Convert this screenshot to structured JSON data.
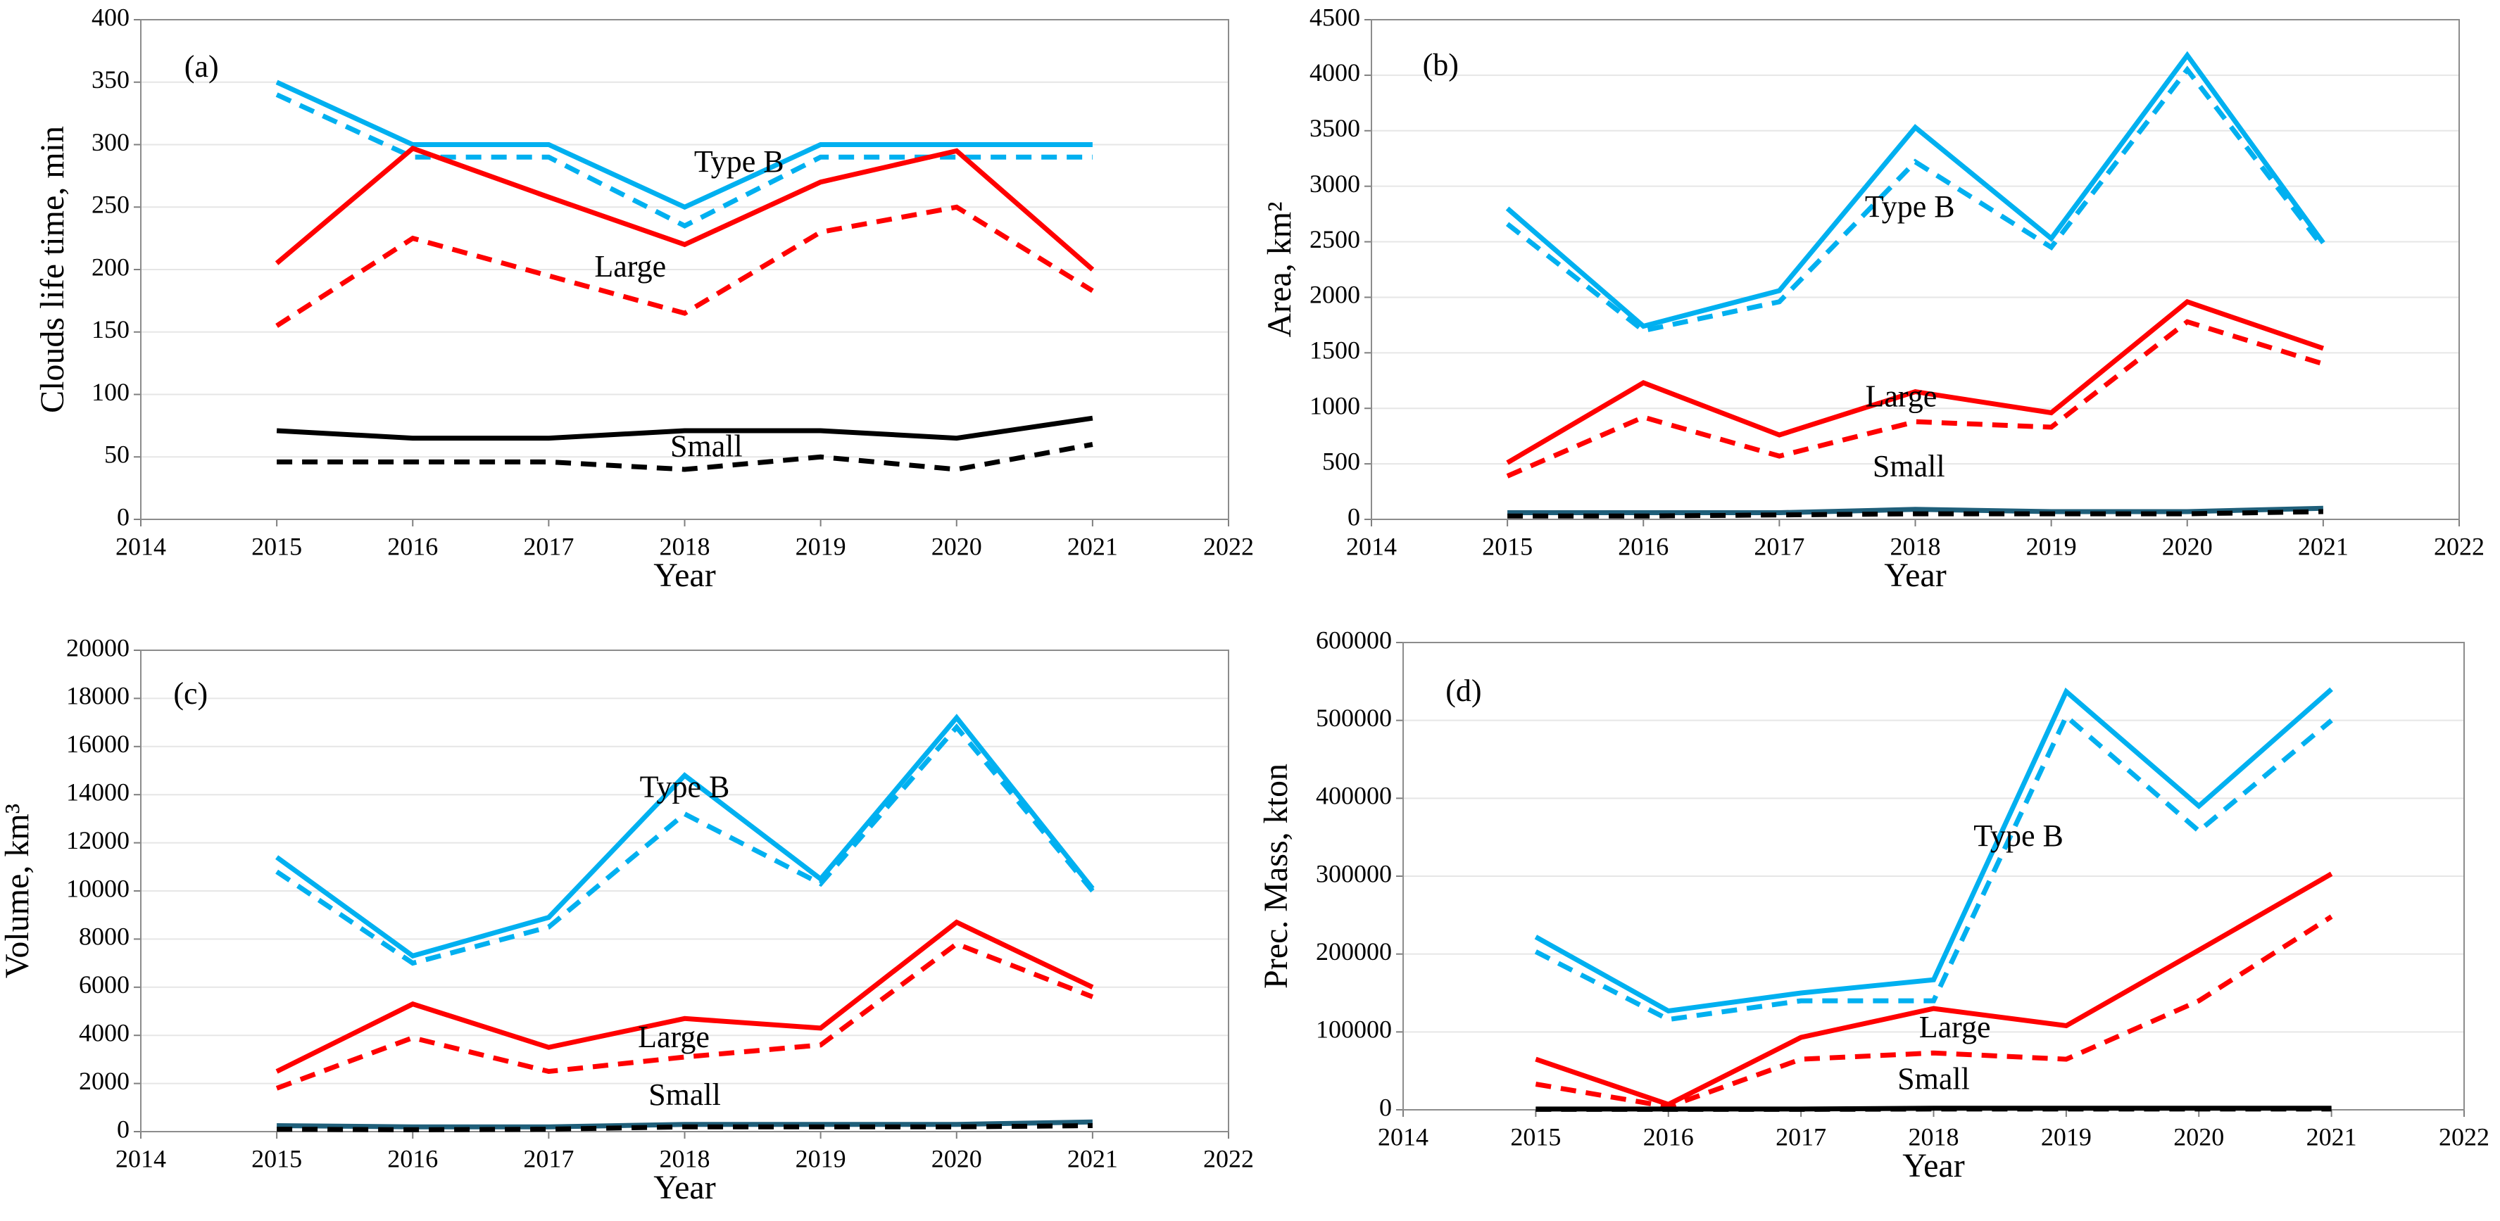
{
  "chart_data": [
    {
      "type": "line",
      "annotations": [
        "(a)",
        "Type B",
        "Large",
        "Small"
      ],
      "xlabel": "Year",
      "ylabel": "Clouds life time, min",
      "x": [
        2015,
        2016,
        2017,
        2018,
        2019,
        2020,
        2021
      ],
      "xlim": [
        2014,
        2022
      ],
      "xticks": [
        2014,
        2015,
        2016,
        2017,
        2018,
        2019,
        2020,
        2021,
        2022
      ],
      "ylim": [
        0,
        400
      ],
      "yticks": [
        0,
        50,
        100,
        150,
        200,
        250,
        300,
        350,
        400
      ],
      "grid": true,
      "series": [
        {
          "color": "#00b0f0",
          "dashed": false,
          "values": [
            350,
            300,
            300,
            250,
            300,
            300,
            300
          ]
        },
        {
          "color": "#00b0f0",
          "dashed": true,
          "values": [
            340,
            290,
            290,
            235,
            290,
            290,
            290
          ]
        },
        {
          "color": "#ff0000",
          "dashed": false,
          "values": [
            205,
            297,
            258,
            220,
            270,
            295,
            200
          ]
        },
        {
          "color": "#ff0000",
          "dashed": true,
          "values": [
            155,
            225,
            195,
            165,
            230,
            250,
            183
          ]
        },
        {
          "color": "#000000",
          "dashed": false,
          "values": [
            71,
            65,
            65,
            71,
            71,
            65,
            81
          ]
        },
        {
          "color": "#000000",
          "dashed": true,
          "values": [
            46,
            46,
            46,
            40,
            50,
            40,
            60
          ]
        }
      ]
    },
    {
      "type": "line",
      "annotations": [
        "(b)",
        "Type B",
        "Large",
        "Small"
      ],
      "xlabel": "Year",
      "ylabel": "Area, km²",
      "x": [
        2015,
        2016,
        2017,
        2018,
        2019,
        2020,
        2021
      ],
      "xlim": [
        2014,
        2022
      ],
      "xticks": [
        2014,
        2015,
        2016,
        2017,
        2018,
        2019,
        2020,
        2021,
        2022
      ],
      "ylim": [
        0,
        4500
      ],
      "yticks": [
        0,
        500,
        1000,
        1500,
        2000,
        2500,
        3000,
        3500,
        4000,
        4500
      ],
      "grid": true,
      "series": [
        {
          "color": "#00b0f0",
          "dashed": false,
          "values": [
            2800,
            1740,
            2060,
            3530,
            2530,
            4180,
            2490
          ]
        },
        {
          "color": "#00b0f0",
          "dashed": true,
          "values": [
            2660,
            1700,
            1960,
            3220,
            2450,
            4050,
            2450
          ]
        },
        {
          "color": "#ff0000",
          "dashed": false,
          "values": [
            510,
            1230,
            760,
            1150,
            960,
            1960,
            1540
          ]
        },
        {
          "color": "#ff0000",
          "dashed": true,
          "values": [
            390,
            920,
            570,
            880,
            830,
            1780,
            1400
          ]
        },
        {
          "color": "#1f5f7a",
          "dashed": false,
          "values": [
            60,
            60,
            60,
            90,
            70,
            70,
            100
          ]
        },
        {
          "color": "#000000",
          "dashed": true,
          "values": [
            30,
            30,
            40,
            50,
            50,
            50,
            70
          ]
        }
      ]
    },
    {
      "type": "line",
      "annotations": [
        "(c)",
        "Type B",
        "Large",
        "Small"
      ],
      "xlabel": "Year",
      "ylabel": "Volume, km³",
      "x": [
        2015,
        2016,
        2017,
        2018,
        2019,
        2020,
        2021
      ],
      "xlim": [
        2014,
        2022
      ],
      "xticks": [
        2014,
        2015,
        2016,
        2017,
        2018,
        2019,
        2020,
        2021,
        2022
      ],
      "ylim": [
        0,
        20000
      ],
      "yticks": [
        0,
        2000,
        4000,
        6000,
        8000,
        10000,
        12000,
        14000,
        16000,
        18000,
        20000
      ],
      "grid": true,
      "series": [
        {
          "color": "#00b0f0",
          "dashed": false,
          "values": [
            11400,
            7300,
            8900,
            14800,
            10500,
            17200,
            10100
          ]
        },
        {
          "color": "#00b0f0",
          "dashed": true,
          "values": [
            10800,
            7000,
            8500,
            13200,
            10300,
            16800,
            10000
          ]
        },
        {
          "color": "#ff0000",
          "dashed": false,
          "values": [
            2500,
            5300,
            3500,
            4700,
            4300,
            8700,
            6000
          ]
        },
        {
          "color": "#ff0000",
          "dashed": true,
          "values": [
            1800,
            3900,
            2500,
            3100,
            3600,
            7800,
            5600
          ]
        },
        {
          "color": "#1f5f7a",
          "dashed": false,
          "values": [
            250,
            200,
            200,
            300,
            300,
            300,
            400
          ]
        },
        {
          "color": "#000000",
          "dashed": true,
          "values": [
            100,
            80,
            100,
            200,
            200,
            200,
            250
          ]
        }
      ]
    },
    {
      "type": "line",
      "annotations": [
        "(d)",
        "Type B",
        "Large",
        "Small"
      ],
      "xlabel": "Year",
      "ylabel": "Prec. Mass, kton",
      "x": [
        2015,
        2016,
        2017,
        2018,
        2019,
        2020,
        2021
      ],
      "xlim": [
        2014,
        2022
      ],
      "xticks": [
        2014,
        2015,
        2016,
        2017,
        2018,
        2019,
        2020,
        2021,
        2022
      ],
      "ylim": [
        0,
        600000
      ],
      "yticks": [
        0,
        100000,
        200000,
        300000,
        400000,
        500000,
        600000
      ],
      "grid": true,
      "series": [
        {
          "color": "#00b0f0",
          "dashed": false,
          "values": [
            222000,
            127000,
            150000,
            167000,
            537000,
            390000,
            540000
          ]
        },
        {
          "color": "#00b0f0",
          "dashed": true,
          "values": [
            203000,
            116000,
            140000,
            140000,
            505000,
            358000,
            500000
          ]
        },
        {
          "color": "#ff0000",
          "dashed": false,
          "values": [
            65000,
            7000,
            93000,
            130000,
            108000,
            205000,
            303000
          ]
        },
        {
          "color": "#ff0000",
          "dashed": true,
          "values": [
            33000,
            4000,
            65000,
            73000,
            65000,
            140000,
            248000
          ]
        },
        {
          "color": "#000000",
          "dashed": false,
          "values": [
            1000,
            1000,
            1000,
            2000,
            2000,
            2000,
            2000
          ]
        },
        {
          "color": "#000000",
          "dashed": true,
          "values": [
            500,
            500,
            500,
            1000,
            1000,
            1000,
            1000
          ]
        }
      ]
    }
  ]
}
